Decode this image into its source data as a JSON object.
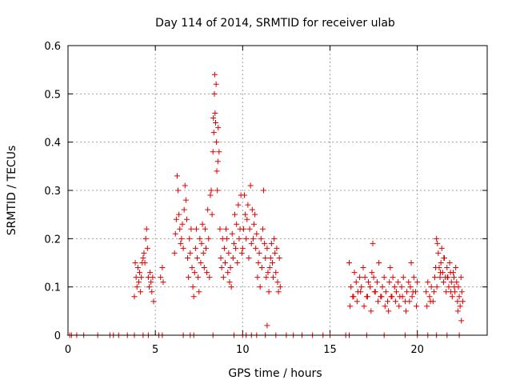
{
  "chart_data": {
    "type": "scatter",
    "title": "Day 114 of 2014, SRMTID for receiver ulab",
    "xlabel": "GPS time / hours",
    "ylabel": "SRMTID / TECUs",
    "xlim": [
      0,
      24
    ],
    "ylim": [
      0,
      0.6
    ],
    "xticks": [
      0,
      5,
      10,
      15,
      20
    ],
    "yticks": [
      0,
      0.1,
      0.2,
      0.3,
      0.4,
      0.5,
      0.6
    ],
    "xtick_labels": [
      "0",
      "5",
      "10",
      "15",
      "20"
    ],
    "ytick_labels": [
      "0",
      "0.1",
      "0.2",
      "0.3",
      "0.4",
      "0.5",
      "0.6"
    ],
    "grid": true,
    "marker": "+",
    "series": [
      {
        "name": "SRMTID",
        "color": "#e00000",
        "x": [
          0.1,
          0.2,
          0.5,
          0.9,
          1.7,
          2.4,
          2.6,
          2.9,
          3.4,
          3.8,
          4.3,
          4.6,
          5.2,
          5.4,
          6.6,
          7.0,
          7.2,
          8.3,
          9.5,
          10.0,
          10.2,
          10.5,
          10.8,
          11.3,
          11.9,
          12.5,
          12.9,
          13.4,
          14.0,
          14.6,
          15.0,
          15.9,
          16.1,
          17.1,
          18.1,
          19.3,
          20.0,
          20.6,
          21.1,
          21.7,
          22.4,
          3.8,
          3.85,
          3.9,
          3.95,
          4.0,
          4.05,
          4.1,
          4.15,
          4.2,
          4.25,
          4.3,
          4.35,
          4.4,
          4.45,
          4.5,
          4.55,
          4.6,
          4.65,
          4.7,
          4.75,
          4.8,
          4.85,
          4.9,
          5.3,
          5.4,
          5.45,
          6.1,
          6.15,
          6.2,
          6.25,
          6.3,
          6.35,
          6.4,
          6.45,
          6.5,
          6.55,
          6.6,
          6.65,
          6.7,
          6.75,
          6.8,
          6.85,
          6.9,
          6.95,
          7.0,
          7.05,
          7.1,
          7.15,
          7.2,
          7.25,
          7.3,
          7.35,
          7.4,
          7.45,
          7.5,
          7.55,
          7.6,
          7.65,
          7.7,
          7.75,
          7.8,
          7.85,
          7.9,
          7.95,
          8.0,
          8.05,
          8.1,
          8.15,
          8.2,
          8.25,
          8.3,
          8.32,
          8.35,
          8.38,
          8.4,
          8.42,
          8.45,
          8.48,
          8.5,
          8.52,
          8.55,
          8.58,
          8.6,
          8.65,
          8.7,
          8.75,
          8.8,
          8.85,
          8.9,
          8.95,
          9.0,
          9.05,
          9.1,
          9.15,
          9.2,
          9.25,
          9.3,
          9.35,
          9.4,
          9.45,
          9.5,
          9.55,
          9.6,
          9.65,
          9.7,
          9.75,
          9.8,
          9.85,
          9.9,
          9.95,
          10.0,
          10.05,
          10.1,
          10.15,
          10.2,
          10.25,
          10.3,
          10.35,
          10.4,
          10.45,
          10.5,
          10.55,
          10.6,
          10.65,
          10.7,
          10.75,
          10.8,
          10.85,
          10.9,
          10.95,
          11.0,
          11.05,
          11.1,
          11.15,
          11.2,
          11.25,
          11.3,
          11.35,
          11.4,
          11.45,
          11.5,
          11.55,
          11.6,
          11.65,
          11.7,
          11.75,
          11.8,
          11.85,
          11.9,
          11.95,
          12.0,
          12.05,
          12.1,
          12.15,
          11.4,
          16.1,
          16.2,
          16.3,
          16.4,
          16.5,
          16.6,
          16.7,
          16.8,
          16.9,
          17.0,
          17.1,
          17.2,
          17.3,
          17.4,
          17.5,
          17.6,
          17.7,
          17.8,
          17.9,
          18.0,
          18.1,
          18.2,
          18.3,
          18.4,
          18.5,
          18.6,
          18.7,
          18.8,
          18.9,
          19.0,
          19.1,
          19.2,
          19.3,
          19.4,
          19.5,
          19.6,
          19.7,
          19.8,
          19.9,
          20.0,
          16.15,
          16.35,
          16.55,
          16.75,
          16.95,
          17.15,
          17.35,
          17.55,
          17.75,
          17.95,
          18.15,
          18.35,
          18.55,
          18.75,
          18.95,
          19.15,
          19.35,
          19.55,
          19.75,
          19.95,
          17.45,
          18.45,
          19.65,
          20.5,
          20.6,
          20.7,
          20.8,
          20.9,
          21.0,
          21.05,
          21.1,
          21.15,
          21.2,
          21.25,
          21.3,
          21.35,
          21.4,
          21.45,
          21.5,
          21.55,
          21.6,
          21.65,
          21.7,
          21.75,
          21.8,
          21.85,
          21.9,
          21.95,
          22.0,
          22.05,
          22.1,
          22.15,
          22.2,
          22.25,
          22.3,
          22.35,
          22.4,
          22.45,
          22.5,
          22.55,
          22.6,
          20.55,
          20.75,
          20.95,
          21.12,
          21.32,
          21.52,
          21.72,
          21.92,
          22.12,
          22.32,
          22.52
        ],
        "y": [
          0,
          0,
          0,
          0,
          0,
          0,
          0,
          0,
          0,
          0,
          0,
          0,
          0,
          0,
          0,
          0,
          0,
          0,
          0,
          0,
          0,
          0,
          0,
          0,
          0,
          0,
          0,
          0,
          0,
          0,
          0,
          0,
          0,
          0,
          0,
          0,
          0,
          0,
          0,
          0,
          0,
          0.08,
          0.15,
          0.12,
          0.1,
          0.14,
          0.11,
          0.13,
          0.09,
          0.12,
          0.15,
          0.16,
          0.17,
          0.15,
          0.2,
          0.22,
          0.18,
          0.12,
          0.1,
          0.13,
          0.11,
          0.09,
          0.12,
          0.07,
          0.12,
          0.14,
          0.11,
          0.17,
          0.21,
          0.24,
          0.33,
          0.3,
          0.25,
          0.22,
          0.19,
          0.2,
          0.23,
          0.18,
          0.26,
          0.31,
          0.28,
          0.24,
          0.16,
          0.12,
          0.2,
          0.17,
          0.22,
          0.14,
          0.1,
          0.08,
          0.13,
          0.18,
          0.22,
          0.16,
          0.12,
          0.09,
          0.2,
          0.15,
          0.19,
          0.23,
          0.17,
          0.14,
          0.22,
          0.18,
          0.13,
          0.26,
          0.2,
          0.12,
          0.29,
          0.3,
          0.25,
          0.38,
          0.45,
          0.42,
          0.5,
          0.54,
          0.46,
          0.44,
          0.52,
          0.4,
          0.34,
          0.3,
          0.36,
          0.43,
          0.38,
          0.22,
          0.16,
          0.14,
          0.2,
          0.12,
          0.18,
          0.15,
          0.22,
          0.2,
          0.13,
          0.17,
          0.11,
          0.14,
          0.1,
          0.21,
          0.16,
          0.19,
          0.25,
          0.18,
          0.23,
          0.15,
          0.27,
          0.2,
          0.22,
          0.29,
          0.17,
          0.18,
          0.22,
          0.29,
          0.25,
          0.2,
          0.24,
          0.27,
          0.16,
          0.22,
          0.31,
          0.19,
          0.26,
          0.2,
          0.23,
          0.25,
          0.18,
          0.21,
          0.12,
          0.15,
          0.17,
          0.1,
          0.2,
          0.14,
          0.22,
          0.3,
          0.19,
          0.16,
          0.12,
          0.18,
          0.13,
          0.09,
          0.14,
          0.16,
          0.19,
          0.15,
          0.12,
          0.2,
          0.17,
          0.13,
          0.18,
          0.11,
          0.09,
          0.16,
          0.1,
          0.02,
          0.15,
          0.1,
          0.08,
          0.13,
          0.11,
          0.09,
          0.12,
          0.1,
          0.14,
          0.12,
          0.08,
          0.11,
          0.1,
          0.13,
          0.12,
          0.09,
          0.11,
          0.15,
          0.08,
          0.1,
          0.12,
          0.09,
          0.07,
          0.11,
          0.08,
          0.12,
          0.1,
          0.09,
          0.11,
          0.08,
          0.1,
          0.12,
          0.07,
          0.09,
          0.11,
          0.1,
          0.08,
          0.12,
          0.09,
          0.11,
          0.06,
          0.08,
          0.07,
          0.09,
          0.06,
          0.08,
          0.05,
          0.09,
          0.07,
          0.08,
          0.06,
          0.05,
          0.08,
          0.07,
          0.06,
          0.08,
          0.05,
          0.07,
          0.09,
          0.06,
          0.19,
          0.14,
          0.15,
          0.09,
          0.11,
          0.08,
          0.1,
          0.07,
          0.12,
          0.14,
          0.2,
          0.19,
          0.17,
          0.14,
          0.12,
          0.15,
          0.18,
          0.13,
          0.11,
          0.16,
          0.12,
          0.09,
          0.14,
          0.12,
          0.1,
          0.15,
          0.13,
          0.11,
          0.08,
          0.13,
          0.12,
          0.09,
          0.14,
          0.11,
          0.07,
          0.1,
          0.08,
          0.06,
          0.12,
          0.09,
          0.07,
          0.06,
          0.07,
          0.09,
          0.1,
          0.13,
          0.16,
          0.12,
          0.09,
          0.1,
          0.05,
          0.03
        ]
      }
    ]
  }
}
